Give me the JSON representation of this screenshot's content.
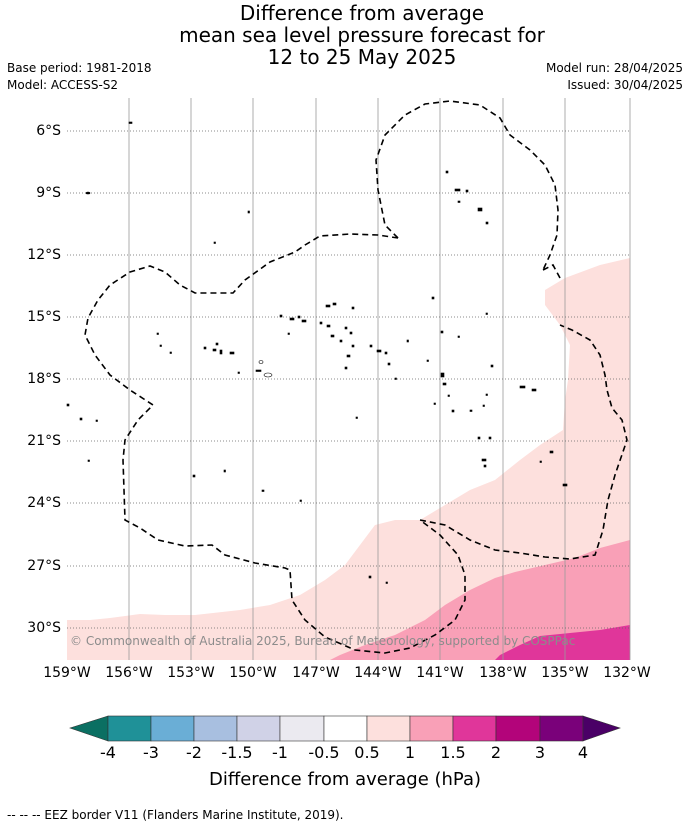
{
  "title_lines": [
    "Difference from average",
    "mean sea level pressure forecast for",
    "12 to 25 May 2025"
  ],
  "base_period": "Base period: 1981-2018",
  "model": "Model: ACCESS-S2",
  "model_run": "Model run: 28/04/2025",
  "issued": "Issued: 30/04/2025",
  "lat_labels": [
    "6°S",
    "9°S",
    "12°S",
    "15°S",
    "18°S",
    "21°S",
    "24°S",
    "27°S",
    "30°S"
  ],
  "lon_labels": [
    "159°W",
    "156°W",
    "153°W",
    "150°W",
    "147°W",
    "144°W",
    "141°W",
    "138°W",
    "135°W",
    "132°W"
  ],
  "copyright": "© Commonwealth of Australia 2025, Bureau of Meteorology, supported by COSPPac",
  "colorbar": {
    "ticks": [
      "-4",
      "-3",
      "-2",
      "-1.5",
      "-1",
      "-0.5",
      "0.5",
      "1",
      "1.5",
      "2",
      "3",
      "4"
    ],
    "colors": {
      "lt_-4": "#0b6f62",
      "n4_n3": "#1f9198",
      "n3_n2": "#6aaed6",
      "n2_n15": "#a8bfe0",
      "n15_n1": "#d0d2e7",
      "n1_n05": "#ebeaf0",
      "n05_05": "#ffffff",
      "p05_1": "#fde0dd",
      "p1_15": "#f9a0b7",
      "p15_2": "#e0369a",
      "p2_3": "#b3047a",
      "p3_4": "#7a017a",
      "gt_4": "#4a0066"
    },
    "label": "Difference from average (hPa)"
  },
  "footer": "-- -- -- EEZ border V11 (Flanders Marine Institute, 2019)."
}
